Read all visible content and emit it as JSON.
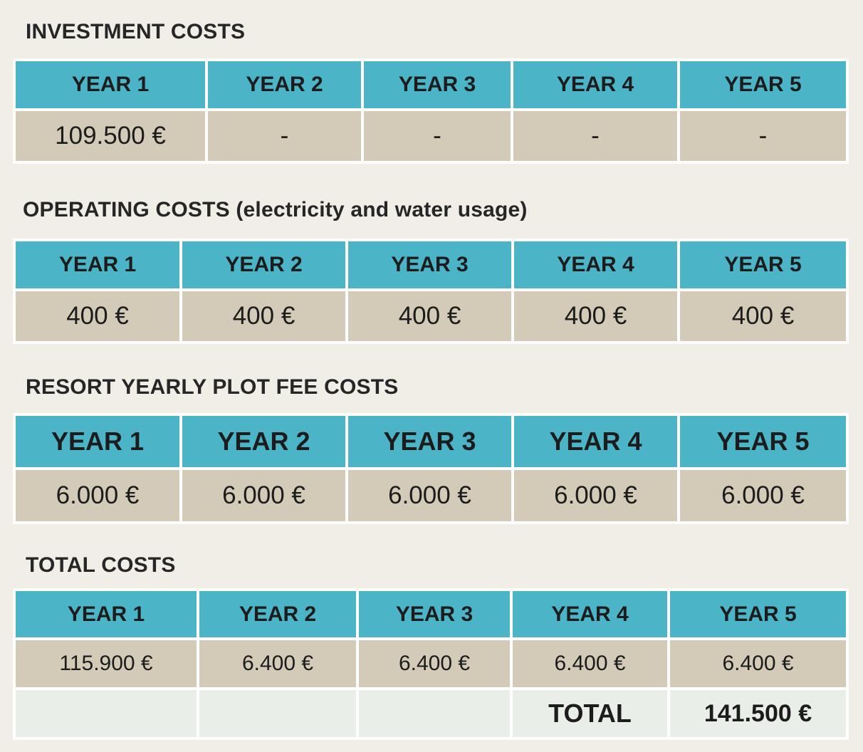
{
  "sections": {
    "investment": {
      "title": "INVESTMENT COSTS",
      "headers": [
        "YEAR 1",
        "YEAR 2",
        "YEAR 3",
        "YEAR 4",
        "YEAR 5"
      ],
      "values": [
        "109.500 €",
        "-",
        "-",
        "-",
        "-"
      ]
    },
    "operating": {
      "title": "OPERATING COSTS (electricity and water usage)",
      "headers": [
        "YEAR 1",
        "YEAR 2",
        "YEAR 3",
        "YEAR 4",
        "YEAR 5"
      ],
      "values": [
        "400 €",
        "400 €",
        "400 €",
        "400 €",
        "400 €"
      ]
    },
    "plot_fee": {
      "title": "RESORT YEARLY PLOT FEE COSTS",
      "headers": [
        "YEAR 1",
        "YEAR 2",
        "YEAR 3",
        "YEAR 4",
        "YEAR 5"
      ],
      "values": [
        "6.000 €",
        "6.000 €",
        "6.000 €",
        "6.000 €",
        "6.000 €"
      ]
    },
    "total": {
      "title": "TOTAL COSTS",
      "headers": [
        "YEAR 1",
        "YEAR 2",
        "YEAR 3",
        "YEAR 4",
        "YEAR 5"
      ],
      "values": [
        "115.900 €",
        "6.400 €",
        "6.400 €",
        "6.400 €",
        "6.400 €"
      ],
      "total_label": "TOTAL",
      "total_value": "141.500 €"
    }
  },
  "colors": {
    "header_bg": "#4bb5c7",
    "cell_bg": "#d3cab7",
    "total_row_bg": "#e9eee8",
    "page_bg": "#f1eee8"
  }
}
